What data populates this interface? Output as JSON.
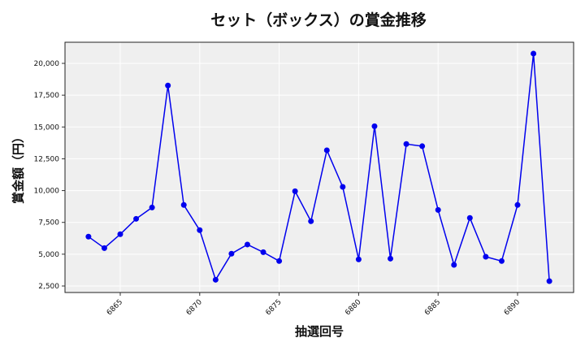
{
  "chart_data": {
    "type": "line",
    "title": "セット（ボックス）の賞金推移",
    "xlabel": "抽選回号",
    "ylabel": "賞金額（円）",
    "x": [
      6863,
      6864,
      6865,
      6866,
      6867,
      6868,
      6869,
      6870,
      6871,
      6872,
      6873,
      6874,
      6875,
      6876,
      6877,
      6878,
      6879,
      6880,
      6881,
      6882,
      6883,
      6884,
      6885,
      6886,
      6887,
      6888,
      6889,
      6890,
      6891,
      6892
    ],
    "series": [
      {
        "name": "セット（ボックス）",
        "color": "#0000ee",
        "values": [
          6380,
          5480,
          6570,
          7780,
          8670,
          18260,
          8870,
          6890,
          2990,
          5040,
          5760,
          5160,
          4460,
          9950,
          7590,
          13170,
          10290,
          4590,
          15060,
          4650,
          13660,
          13490,
          8480,
          4160,
          7850,
          4800,
          4460,
          8870,
          20770,
          2880
        ]
      }
    ],
    "x_ticks": [
      "6865",
      "6870",
      "6875",
      "6880",
      "6885",
      "6890"
    ],
    "y_ticks": [
      "2,500",
      "5,000",
      "7,500",
      "10,000",
      "12,500",
      "15,000",
      "17,500",
      "20,000"
    ],
    "xlim": [
      6861.7,
      6893.3
    ],
    "ylim": [
      1900,
      21700
    ],
    "grid": true,
    "legend": "none",
    "plot_background": "#efefef"
  }
}
